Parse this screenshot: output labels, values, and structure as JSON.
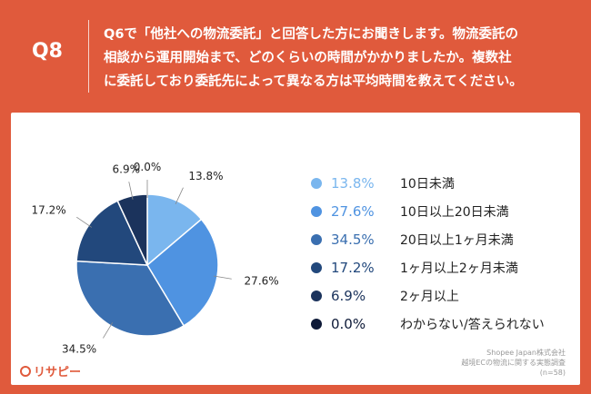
{
  "header": {
    "qnum": "Q8",
    "question": "Q6で「他社への物流委託」と回答した方にお聞きします。物流委託の\n相談から運用開始まで、どのくらいの時間がかかりましたか。複数社\nに委託しており委託先によって異なる方は平均時間を教えてください。"
  },
  "chart_data": {
    "type": "pie",
    "categories": [
      "10日未満",
      "10日以上20日未満",
      "20日以上1ヶ月未満",
      "1ヶ月以上2ヶ月未満",
      "2ヶ月以上",
      "わからない/答えられない"
    ],
    "values": [
      13.8,
      27.6,
      34.5,
      17.2,
      6.9,
      0.0
    ],
    "value_labels": [
      "13.8%",
      "27.6%",
      "34.5%",
      "17.2%",
      "6.9%",
      "0.0%"
    ],
    "colors": [
      "#7ab6ee",
      "#4f93e1",
      "#3a6fb0",
      "#22487c",
      "#1b335c",
      "#0e1a38"
    ],
    "start_angle": "12 o'clock",
    "direction": "clockwise",
    "legend_position": "right"
  },
  "source": {
    "line1": "Shopee Japan株式会社",
    "line2": "越境ECの物流に関する実態調査",
    "line3": "(n=58)"
  },
  "logo": {
    "text": "リサピー"
  }
}
